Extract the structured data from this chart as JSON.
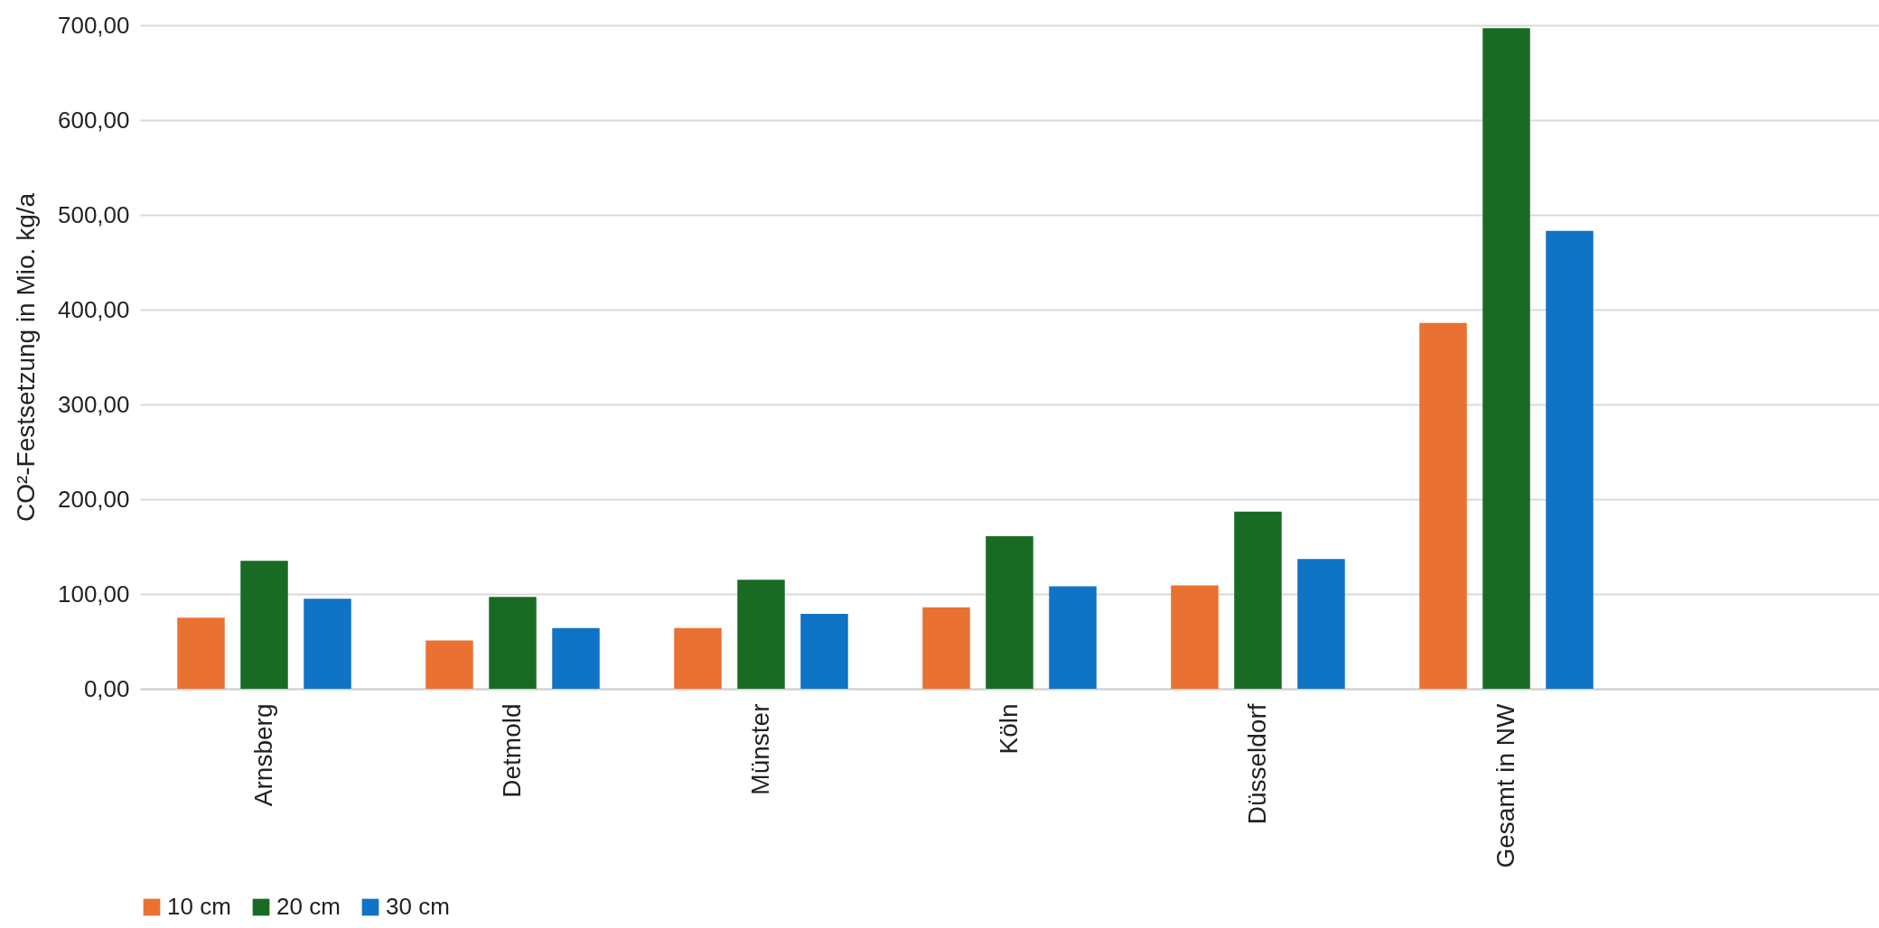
{
  "chart_data": {
    "type": "bar",
    "ylabel": "CO²-Festsetzung in Mio. kg/a",
    "categories": [
      "Arnsberg",
      "Detmold",
      "Münster",
      "Köln",
      "Düsseldorf",
      "Gesamt in NW",
      null
    ],
    "series": [
      {
        "name": "10 cm",
        "color": "#e97132",
        "values": [
          75,
          51,
          64,
          86,
          109,
          386,
          null
        ]
      },
      {
        "name": "20 cm",
        "color": "#196b24",
        "values": [
          135,
          97,
          115,
          161,
          187,
          697,
          null
        ]
      },
      {
        "name": "30 cm",
        "color": "#0f73c6",
        "values": [
          95,
          64,
          79,
          108,
          137,
          483,
          null
        ]
      }
    ],
    "ylim": [
      0,
      700
    ],
    "yticks": [
      {
        "value": 0,
        "label": "0,00"
      },
      {
        "value": 100,
        "label": "100,00"
      },
      {
        "value": 200,
        "label": "200,00"
      },
      {
        "value": 300,
        "label": "300,00"
      },
      {
        "value": 400,
        "label": "400,00"
      },
      {
        "value": 500,
        "label": "500,00"
      },
      {
        "value": 600,
        "label": "600,00"
      },
      {
        "value": 700,
        "label": "700,00"
      }
    ],
    "grid": "y",
    "legend": "bottom"
  }
}
